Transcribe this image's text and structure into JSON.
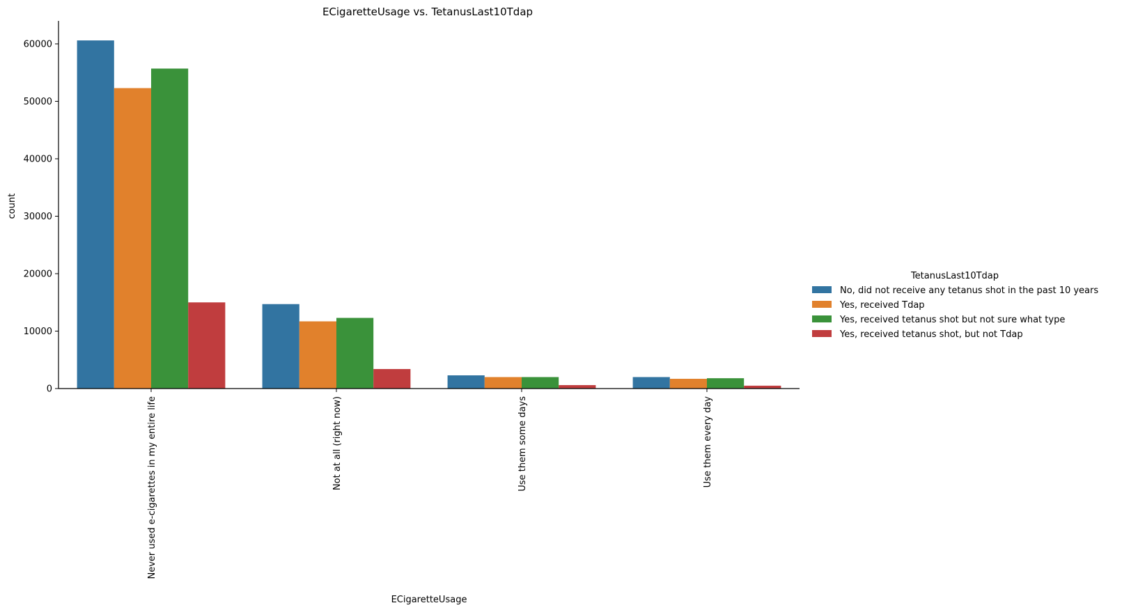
{
  "chart_data": {
    "type": "bar",
    "title": "ECigaretteUsage vs. TetanusLast10Tdap",
    "xlabel": "ECigaretteUsage",
    "ylabel": "count",
    "ylim": [
      0,
      64000
    ],
    "yticks": [
      0,
      10000,
      20000,
      30000,
      40000,
      50000,
      60000
    ],
    "grid": false,
    "legend_position": "right",
    "legend_title": "TetanusLast10Tdap",
    "categories": [
      "Never used e-cigarettes in my entire life",
      "Not at all (right now)",
      "Use them some days",
      "Use them every day"
    ],
    "series": [
      {
        "name": "No, did not receive any tetanus shot in the past 10 years",
        "color": "#3274a1",
        "values": [
          60600,
          14700,
          2300,
          2000
        ]
      },
      {
        "name": "Yes, received Tdap",
        "color": "#e1812c",
        "values": [
          52300,
          11700,
          2000,
          1700
        ]
      },
      {
        "name": "Yes, received tetanus shot but not sure what type",
        "color": "#3a923a",
        "values": [
          55700,
          12300,
          2000,
          1800
        ]
      },
      {
        "name": "Yes, received tetanus shot, but not Tdap",
        "color": "#c03d3e",
        "values": [
          15000,
          3400,
          600,
          500
        ]
      }
    ]
  }
}
